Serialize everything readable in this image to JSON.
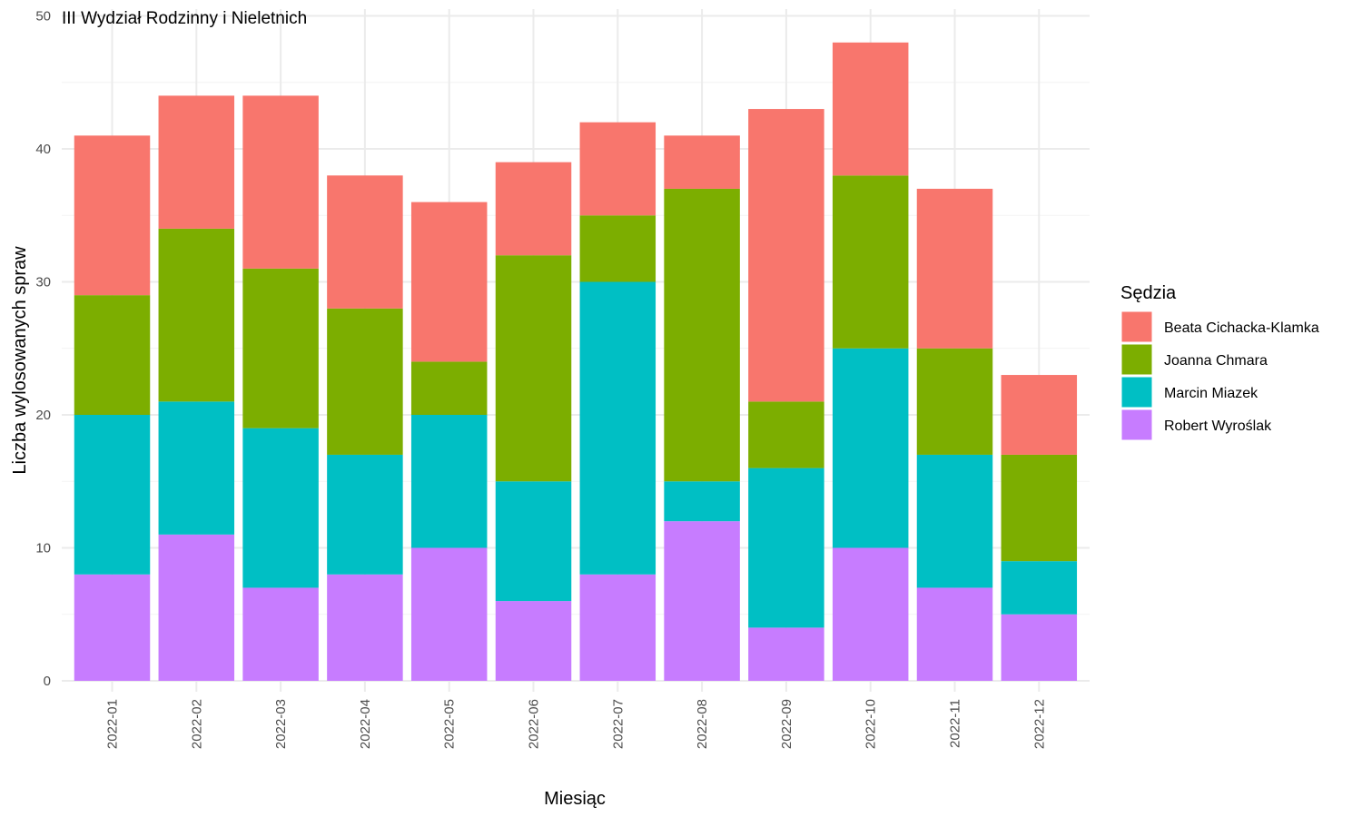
{
  "chart_data": {
    "type": "bar",
    "stacked": true,
    "title": "III Wydział Rodzinny i Nieletnich",
    "xlabel": "Miesiąc",
    "ylabel": "Liczba wylosowanych spraw",
    "ylim": [
      0,
      50
    ],
    "yticks": [
      0,
      10,
      20,
      30,
      40,
      50
    ],
    "grid": true,
    "legend": {
      "title": "Sędzia",
      "position": "right"
    },
    "categories": [
      "2022-01",
      "2022-02",
      "2022-03",
      "2022-04",
      "2022-05",
      "2022-06",
      "2022-07",
      "2022-08",
      "2022-09",
      "2022-10",
      "2022-11",
      "2022-12"
    ],
    "series": [
      {
        "name": "Beata Cichacka-Klamka",
        "color": "#F8766D",
        "values": [
          12,
          10,
          13,
          10,
          12,
          7,
          7,
          4,
          22,
          10,
          12,
          6
        ]
      },
      {
        "name": "Joanna Chmara",
        "color": "#7CAE00",
        "values": [
          9,
          13,
          12,
          11,
          4,
          17,
          5,
          22,
          5,
          13,
          8,
          8
        ]
      },
      {
        "name": "Marcin Miazek",
        "color": "#00BFC4",
        "values": [
          12,
          10,
          12,
          9,
          10,
          9,
          22,
          3,
          12,
          15,
          10,
          4
        ]
      },
      {
        "name": "Robert Wyroślak",
        "color": "#C77CFF",
        "values": [
          8,
          11,
          7,
          8,
          10,
          6,
          8,
          12,
          4,
          10,
          7,
          5
        ]
      }
    ]
  }
}
